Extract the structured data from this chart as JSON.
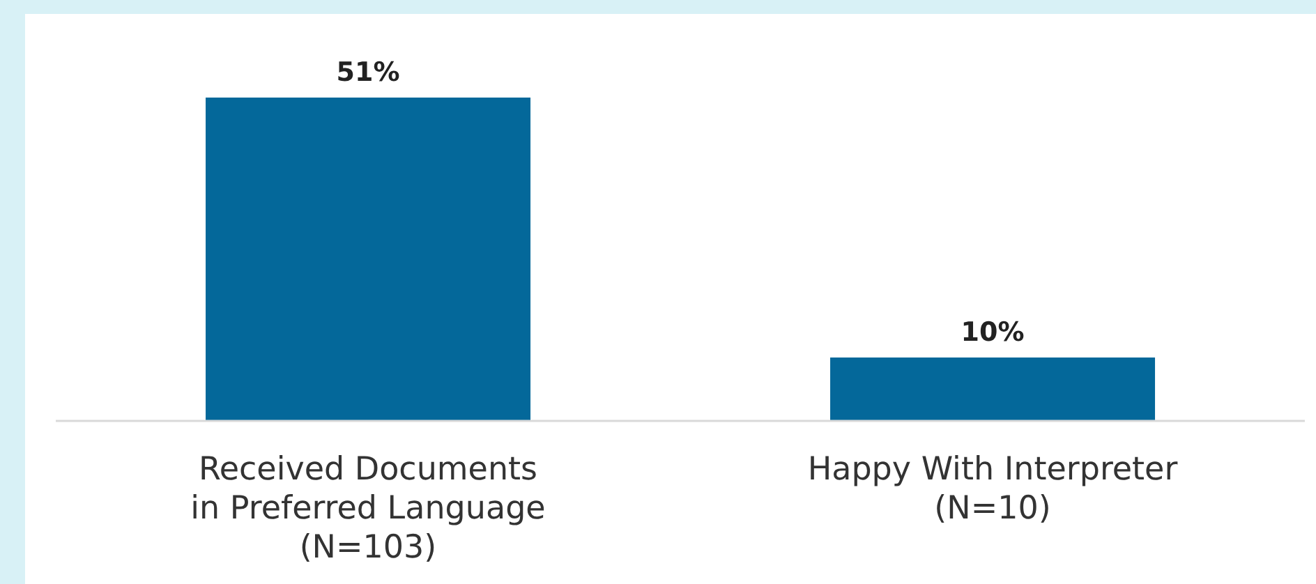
{
  "chart_data": {
    "type": "bar",
    "categories": [
      "Received Documents\nin Preferred Language\n(N=103)",
      "Happy With Interpreter\n(N=10)"
    ],
    "values": [
      51,
      10
    ],
    "color": "#04689a",
    "value_labels": [
      "51%",
      "10%"
    ],
    "grid": false,
    "legend": false
  }
}
